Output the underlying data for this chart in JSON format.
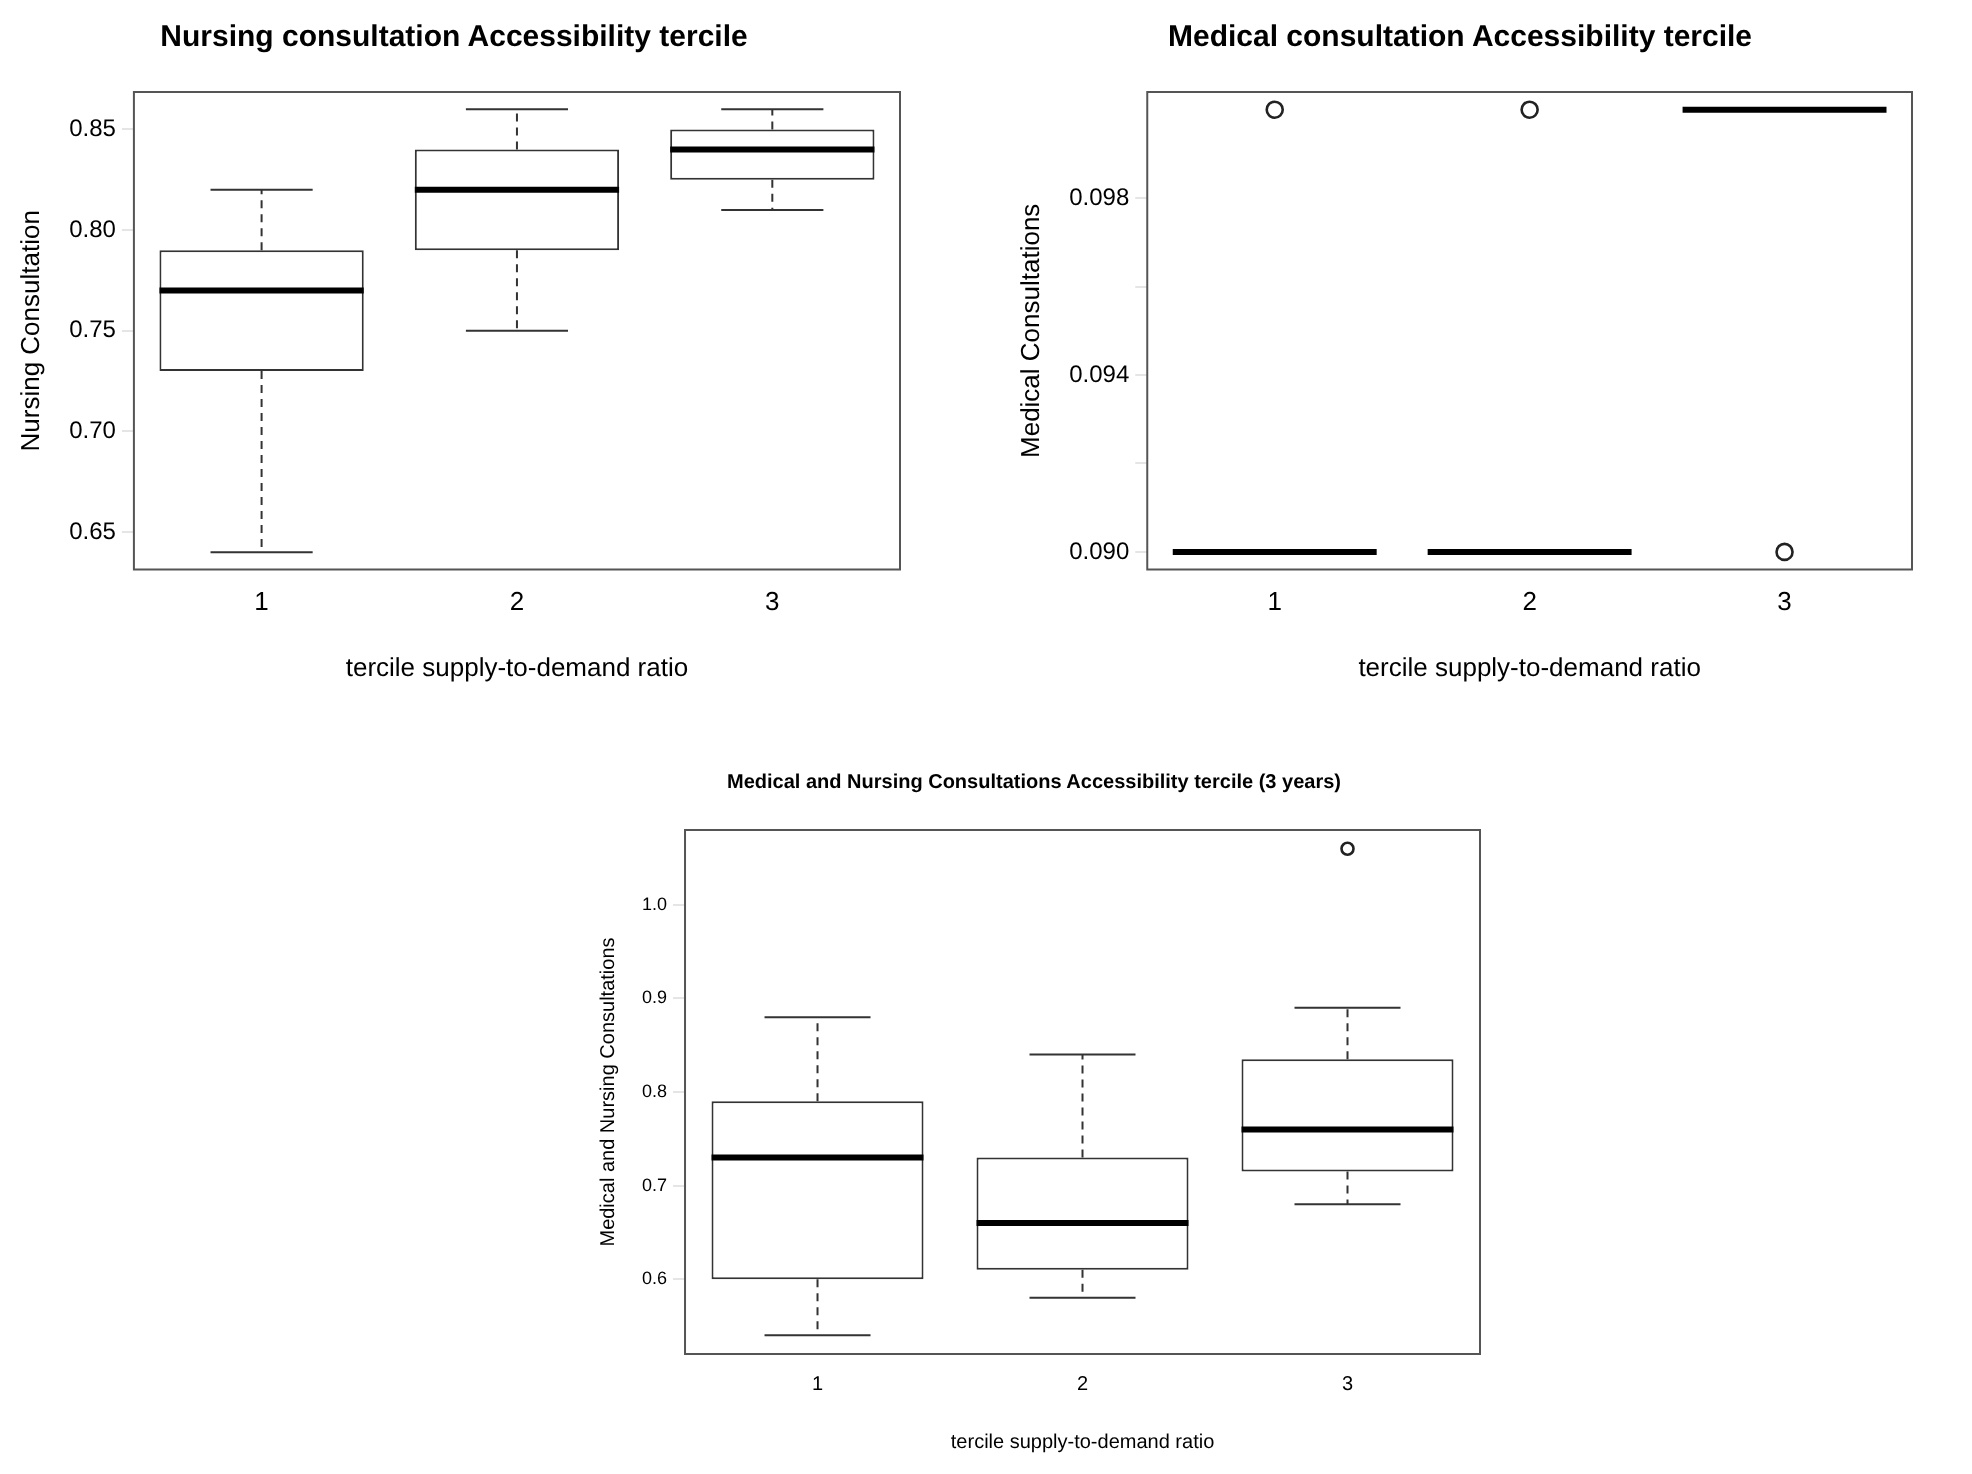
{
  "chart_data": [
    {
      "type": "box",
      "title": "Nursing consultation Accessibility tercile",
      "xlabel": "tercile supply-to-demand ratio",
      "ylabel": "Nursing Consultation",
      "categories": [
        "1",
        "2",
        "3"
      ],
      "boxes": [
        {
          "low": 0.64,
          "q1": 0.73,
          "median": 0.77,
          "q3": 0.79,
          "high": 0.82
        },
        {
          "low": 0.75,
          "q1": 0.79,
          "median": 0.82,
          "q3": 0.84,
          "high": 0.86
        },
        {
          "low": 0.81,
          "q1": 0.825,
          "median": 0.84,
          "q3": 0.85,
          "high": 0.86
        }
      ],
      "ylim": [
        0.6314,
        0.8686
      ],
      "yticks": [
        {
          "value": 0.65,
          "label": "0.65"
        },
        {
          "value": 0.7,
          "label": "0.70"
        },
        {
          "value": 0.75,
          "label": "0.75"
        },
        {
          "value": 0.8,
          "label": "0.80"
        },
        {
          "value": 0.85,
          "label": "0.85"
        }
      ]
    },
    {
      "type": "box",
      "title": "Medical consultation Accessibility tercile",
      "xlabel": "tercile supply-to-demand ratio",
      "ylabel": "Medical Consultations",
      "categories": [
        "1",
        "2",
        "3"
      ],
      "boxes": [
        {
          "low": 0.09,
          "q1": 0.09,
          "median": 0.09,
          "q3": 0.09,
          "high": 0.09,
          "outliers": [
            0.1
          ]
        },
        {
          "low": 0.09,
          "q1": 0.09,
          "median": 0.09,
          "q3": 0.09,
          "high": 0.09,
          "outliers": [
            0.1
          ]
        },
        {
          "low": 0.1,
          "q1": 0.1,
          "median": 0.1,
          "q3": 0.1,
          "high": 0.1,
          "outliers": [
            0.09
          ]
        }
      ],
      "ylim": [
        0.0896,
        0.1004
      ],
      "yticks": [
        {
          "value": 0.09,
          "label": "0.090"
        },
        {
          "value": 0.092,
          "label": null
        },
        {
          "value": 0.094,
          "label": "0.094"
        },
        {
          "value": 0.096,
          "label": null
        },
        {
          "value": 0.098,
          "label": "0.098"
        }
      ]
    },
    {
      "type": "box",
      "title": "Medical and Nursing Consultations Accessibility tercile (3 years)",
      "xlabel": "tercile supply-to-demand ratio",
      "ylabel": "Medical and Nursing Consultations",
      "categories": [
        "1",
        "2",
        "3"
      ],
      "boxes": [
        {
          "low": 0.54,
          "q1": 0.6,
          "median": 0.73,
          "q3": 0.79,
          "high": 0.88
        },
        {
          "low": 0.58,
          "q1": 0.61,
          "median": 0.66,
          "q3": 0.73,
          "high": 0.84
        },
        {
          "low": 0.68,
          "q1": 0.715,
          "median": 0.76,
          "q3": 0.835,
          "high": 0.89,
          "outliers": [
            1.06
          ]
        }
      ],
      "ylim": [
        0.52,
        1.08
      ],
      "yticks": [
        {
          "value": 0.6,
          "label": "0.6"
        },
        {
          "value": 0.7,
          "label": "0.7"
        },
        {
          "value": 0.8,
          "label": "0.8"
        },
        {
          "value": 0.9,
          "label": "0.9"
        },
        {
          "value": 1.0,
          "label": "1.0"
        }
      ]
    }
  ]
}
